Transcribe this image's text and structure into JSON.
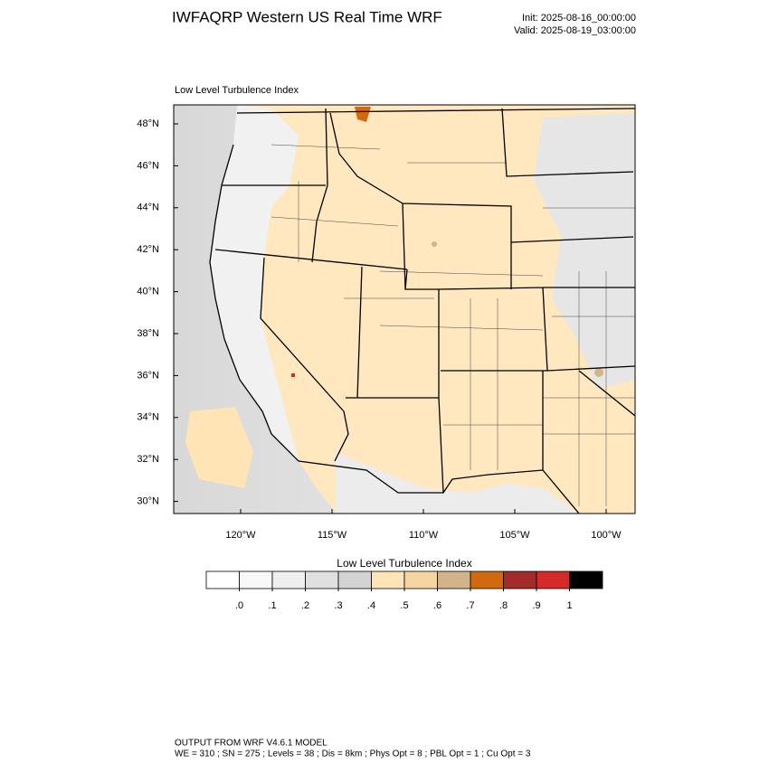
{
  "header": {
    "title": "IWFAQRP Western US Real Time WRF",
    "init": "Init: 2025-08-16_00:00:00",
    "valid": "Valid: 2025-08-19_03:00:00"
  },
  "map": {
    "subtitle": "Low Level Turbulence Index",
    "lat_ticks": [
      {
        "value": 48,
        "label": "48°N"
      },
      {
        "value": 46,
        "label": "46°N"
      },
      {
        "value": 44,
        "label": "44°N"
      },
      {
        "value": 42,
        "label": "42°N"
      },
      {
        "value": 40,
        "label": "40°N"
      },
      {
        "value": 38,
        "label": "38°N"
      },
      {
        "value": 36,
        "label": "36°N"
      },
      {
        "value": 34,
        "label": "34°N"
      },
      {
        "value": 32,
        "label": "32°N"
      },
      {
        "value": 30,
        "label": "30°N"
      }
    ],
    "lon_ticks": [
      {
        "value": -120,
        "label": "120°W"
      },
      {
        "value": -115,
        "label": "115°W"
      },
      {
        "value": -110,
        "label": "110°W"
      },
      {
        "value": -105,
        "label": "105°W"
      },
      {
        "value": -100,
        "label": "100°W"
      }
    ]
  },
  "colorbar": {
    "title": "Low Level Turbulence Index",
    "levels": [
      {
        "value": 0,
        "label": ".0"
      },
      {
        "value": 0.1,
        "label": ".1"
      },
      {
        "value": 0.2,
        "label": ".2"
      },
      {
        "value": 0.3,
        "label": ".3"
      },
      {
        "value": 0.4,
        "label": ".4"
      },
      {
        "value": 0.5,
        "label": ".5"
      },
      {
        "value": 0.6,
        "label": ".6"
      },
      {
        "value": 0.7,
        "label": ".7"
      },
      {
        "value": 0.8,
        "label": ".8"
      },
      {
        "value": 0.9,
        "label": ".9"
      },
      {
        "value": 1,
        "label": "1"
      }
    ],
    "colors": [
      "#ffffff",
      "#f8f8f8",
      "#efefef",
      "#e0e0e0",
      "#d3d3d3",
      "#ffe4b5",
      "#f5d5a0",
      "#d2b48c",
      "#d2690e",
      "#a52a2a",
      "#d42a2a",
      "#000000"
    ]
  },
  "footer": {
    "line1": "OUTPUT FROM WRF V4.6.1 MODEL",
    "line2": "WE = 310 ; SN = 275 ; Levels = 38 ; Dis = 8km ; Phys Opt = 8 ; PBL Opt = 1 ; Cu Opt = 3"
  }
}
